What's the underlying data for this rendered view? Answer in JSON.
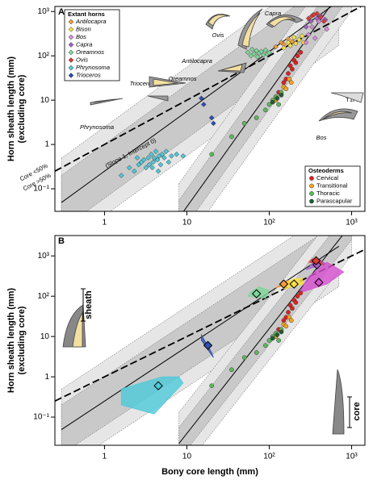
{
  "chart_data": [
    {
      "type": "scatter",
      "label": "A",
      "y_label": [
        "Horn sheath length (mm)",
        "(excluding core)"
      ],
      "log_scale": true,
      "identity_line": true,
      "xlim": [
        0.25,
        1450
      ],
      "ylim": [
        0.031,
        1300
      ],
      "xticks": [
        1,
        10,
        {
          "value": 100,
          "label": "10²"
        },
        {
          "value": 1000,
          "label": "10³"
        }
      ],
      "yticks": [
        {
          "value": 0.1,
          "label": "10⁻¹"
        },
        1,
        10,
        {
          "value": 100,
          "label": "10²"
        },
        {
          "value": 1000,
          "label": "10³"
        }
      ],
      "legends": [
        {
          "title": "Extant horns",
          "corner": "top-left",
          "italic": true
        },
        {
          "title": "Osteoderms",
          "corner": "bottom-right",
          "italic": false
        }
      ],
      "fits": [
        {
          "x": [
            0.3,
            700
          ],
          "values": [
            0.049,
            1730
          ],
          "inner_lower": [
            0.012,
            430
          ],
          "inner_upper": [
            0.2,
            6900
          ],
          "outer_lower": [
            0.0049,
            173
          ],
          "outer_upper": [
            0.49,
            17300
          ]
        },
        {
          "x": [
            8,
            1000
          ],
          "values": [
            0.022,
            6300
          ],
          "inner_lower": [
            0.0088,
            2520
          ],
          "inner_upper": [
            0.055,
            15750
          ],
          "outer_lower": [
            0.0037,
            1050
          ],
          "outer_upper": [
            0.13,
            37800
          ]
        }
      ],
      "series": [
        {
          "name": "Antilocapra",
          "color": "#f29b38",
          "marker": "diamond",
          "legend": 0,
          "x": [
            120,
            140,
            150,
            170,
            190
          ],
          "values": [
            160,
            200,
            180,
            240,
            210
          ]
        },
        {
          "name": "Bison",
          "color": "#f6e03e",
          "marker": "diamond",
          "legend": 0,
          "x": [
            150,
            170,
            180,
            200,
            210,
            230,
            250,
            260
          ],
          "values": [
            150,
            200,
            170,
            260,
            190,
            230,
            280,
            200
          ]
        },
        {
          "name": "Bos",
          "color": "#d98ad9",
          "marker": "diamond",
          "legend": 0,
          "x": [
            240,
            280,
            300,
            330,
            360,
            400,
            450,
            500
          ],
          "values": [
            120,
            200,
            300,
            450,
            250,
            600,
            700,
            400
          ]
        },
        {
          "name": "Capra",
          "color": "#a461c9",
          "marker": "diamond",
          "legend": 0,
          "x": [
            280,
            320,
            380,
            420,
            480
          ],
          "values": [
            450,
            600,
            700,
            800,
            650
          ]
        },
        {
          "name": "Oreamnos",
          "color": "#7fd69a",
          "marker": "diamond",
          "legend": 0,
          "x": [
            55,
            60,
            62,
            65,
            70,
            72,
            75,
            80,
            85,
            90,
            95,
            100
          ],
          "values": [
            120,
            100,
            140,
            110,
            130,
            95,
            115,
            125,
            105,
            135,
            110,
            118
          ]
        },
        {
          "name": "Ovis",
          "color": "#d83c3c",
          "marker": "diamond",
          "legend": 0,
          "x": [
            300,
            330,
            350,
            380,
            420,
            460
          ],
          "values": [
            700,
            800,
            850,
            900,
            750,
            600
          ]
        },
        {
          "name": "Phrynosoma",
          "color": "#4ec9d9",
          "marker": "diamond",
          "legend": 0,
          "x": [
            1.6,
            2,
            2.3,
            2.6,
            2.8,
            3,
            3.2,
            3.4,
            3.5,
            3.7,
            3.9,
            4,
            4.2,
            4.4,
            4.6,
            4.8,
            5,
            5.3,
            5.6,
            6,
            6.5,
            7.5,
            2.5,
            3.8,
            4.5,
            9
          ],
          "values": [
            0.2,
            0.3,
            0.25,
            0.35,
            0.4,
            0.45,
            0.3,
            0.5,
            0.35,
            0.6,
            0.4,
            0.5,
            0.7,
            0.45,
            0.55,
            0.35,
            0.6,
            0.5,
            0.7,
            0.4,
            0.55,
            0.6,
            0.5,
            0.3,
            0.25,
            0.55
          ]
        },
        {
          "name": "Trioceros",
          "color": "#2f4fb0",
          "marker": "diamond",
          "legend": 0,
          "x": [
            15,
            16,
            20,
            21
          ],
          "values": [
            11,
            8,
            4,
            3
          ]
        },
        {
          "name": "Cervical",
          "color": "#e02020",
          "marker": "circle",
          "legend": 1,
          "x": [
            130,
            150,
            170,
            180,
            200,
            220,
            160,
            190,
            240,
            210
          ],
          "values": [
            15,
            25,
            40,
            60,
            80,
            100,
            30,
            50,
            120,
            70
          ]
        },
        {
          "name": "Transitional",
          "color": "#f5a623",
          "marker": "circle",
          "legend": 1,
          "x": [
            120,
            140,
            150,
            160,
            175,
            185
          ],
          "values": [
            10,
            14,
            20,
            18,
            30,
            25
          ]
        },
        {
          "name": "Thoracic",
          "color": "#5cb85c",
          "marker": "circle",
          "legend": 1,
          "x": [
            20,
            35,
            50,
            70,
            90,
            100,
            110,
            120,
            130,
            140
          ],
          "values": [
            0.6,
            1.5,
            3,
            4,
            6,
            8,
            10,
            12,
            8,
            15
          ]
        },
        {
          "name": "Parascapular",
          "color": "#1f5f2f",
          "marker": "circle",
          "legend": 1,
          "x": [
            110,
            125,
            140
          ],
          "values": [
            9,
            11,
            13
          ]
        }
      ],
      "annotations": [
        "Ovis",
        "Capra",
        "Antilocapra",
        "Oreamnos",
        "Trioceros",
        "Phrynosoma",
        "Bos",
        "T1FL",
        "(Slope 1, Intercept 0)",
        "Core <50%",
        "Core >50%"
      ]
    },
    {
      "type": "region",
      "label": "B",
      "y_label": [
        "Horn sheath length (mm)",
        "(excluding core)"
      ],
      "x_label": "Bony core length (mm)",
      "log_scale": true,
      "identity_line": true,
      "xlim": [
        0.25,
        1450
      ],
      "ylim": [
        0.02,
        3200
      ],
      "xticks": [
        1,
        10,
        {
          "value": 100,
          "label": "10²"
        },
        {
          "value": 1000,
          "label": "10³"
        }
      ],
      "yticks": [
        {
          "value": 0.1,
          "label": "10⁻¹"
        },
        1,
        10,
        {
          "value": 100,
          "label": "10²"
        },
        {
          "value": 1000,
          "label": "10³"
        }
      ],
      "fits": [
        {
          "x": [
            0.3,
            700
          ],
          "values": [
            0.049,
            1730
          ],
          "inner_lower": [
            0.012,
            430
          ],
          "inner_upper": [
            0.2,
            6900
          ],
          "outer_lower": [
            0.0049,
            173
          ],
          "outer_upper": [
            0.49,
            17300
          ]
        },
        {
          "x": [
            8,
            1000
          ],
          "values": [
            0.022,
            6300
          ],
          "inner_lower": [
            0.0088,
            2520
          ],
          "inner_upper": [
            0.055,
            15750
          ],
          "outer_lower": [
            0.0037,
            1050
          ],
          "outer_upper": [
            0.13,
            37800
          ]
        }
      ],
      "regions": [
        {
          "color": "#4ec9d9",
          "x": [
            1.6,
            4,
            9,
            8,
            5,
            1.6
          ],
          "values": [
            0.2,
            0.12,
            0.7,
            1,
            1,
            0.5
          ],
          "mean_x": 4.5,
          "mean_y": 0.6
        },
        {
          "color": "#2f4fb0",
          "x": [
            15,
            20,
            21,
            15
          ],
          "values": [
            11,
            4,
            3,
            8
          ],
          "mean_x": 18,
          "mean_y": 6
        },
        {
          "color": "#7fd69a",
          "x": [
            55,
            90,
            100,
            75,
            60
          ],
          "values": [
            100,
            90,
            140,
            170,
            130
          ],
          "mean_x": 70,
          "mean_y": 115
        },
        {
          "color": "#f29b38",
          "x": [
            120,
            190,
            170,
            140
          ],
          "values": [
            160,
            210,
            250,
            200
          ],
          "mean_x": 150,
          "mean_y": 200
        },
        {
          "color": "#d64fd0",
          "x": [
            230,
            500,
            800,
            500,
            300
          ],
          "values": [
            120,
            200,
            400,
            700,
            300
          ],
          "mean_x": 400,
          "mean_y": 220
        },
        {
          "color": "#f6e03e",
          "x": [
            150,
            260,
            250,
            200,
            150
          ],
          "values": [
            150,
            200,
            280,
            270,
            200
          ],
          "mean_x": 200,
          "mean_y": 200
        },
        {
          "color": "#a461c9",
          "x": [
            280,
            480,
            420,
            320
          ],
          "values": [
            450,
            650,
            800,
            600
          ],
          "mean_x": 380,
          "mean_y": 600
        },
        {
          "color": "#d83c3c",
          "x": [
            300,
            460,
            420,
            330
          ],
          "values": [
            700,
            600,
            750,
            850
          ],
          "mean_x": 370,
          "mean_y": 760
        }
      ],
      "series": [
        {
          "color": "#e02020",
          "marker": "circle",
          "x": [
            130,
            150,
            170,
            180,
            200,
            220,
            160,
            190,
            240,
            210
          ],
          "values": [
            15,
            25,
            40,
            60,
            80,
            100,
            30,
            50,
            120,
            70
          ]
        },
        {
          "color": "#f5a623",
          "marker": "circle",
          "x": [
            120,
            140,
            150,
            160,
            175,
            185
          ],
          "values": [
            10,
            14,
            20,
            18,
            30,
            25
          ]
        },
        {
          "color": "#5cb85c",
          "marker": "circle",
          "x": [
            20,
            35,
            50,
            70,
            90,
            100,
            110,
            120,
            130,
            140
          ],
          "values": [
            0.6,
            1.5,
            3,
            4,
            6,
            8,
            10,
            12,
            8,
            15
          ]
        },
        {
          "color": "#1f5f2f",
          "marker": "circle",
          "x": [
            110,
            125,
            140
          ],
          "values": [
            9,
            11,
            13
          ]
        }
      ],
      "annotations": [
        "sheath",
        "core"
      ]
    }
  ]
}
